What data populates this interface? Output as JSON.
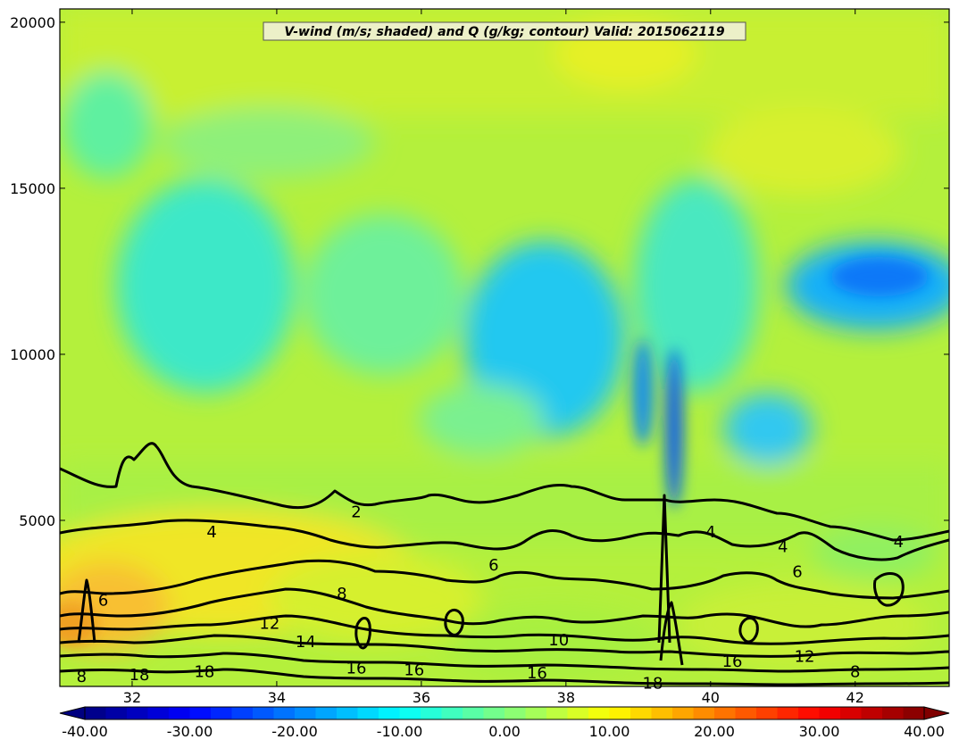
{
  "chart_data": {
    "type": "heatmap",
    "title": "V-wind (m/s; shaded) and Q (g/kg; contour) Valid: 2015062119",
    "x_ticks": [
      32,
      34,
      36,
      38,
      40,
      42
    ],
    "xlim": [
      31.0,
      43.3
    ],
    "y_ticks": [
      5000,
      10000,
      15000,
      20000
    ],
    "ylim": [
      0,
      20400
    ],
    "shaded_variable": "V-wind (m/s)",
    "contour_variable": "Q (g/kg)",
    "colorbar": {
      "ticks": [
        "-40.00",
        "-30.00",
        "-20.00",
        "-10.00",
        "0.00",
        "10.00",
        "20.00",
        "30.00",
        "40.00"
      ],
      "range": [
        -40,
        40
      ],
      "extend": "both",
      "colormap": "jet"
    },
    "contour_labels": [
      {
        "text": "2",
        "x": 35.1,
        "y": 5250
      },
      {
        "text": "4",
        "x": 33.1,
        "y": 4650
      },
      {
        "text": "4",
        "x": 40.0,
        "y": 4650
      },
      {
        "text": "4",
        "x": 41.0,
        "y": 4200
      },
      {
        "text": "4",
        "x": 42.6,
        "y": 4350
      },
      {
        "text": "6",
        "x": 31.6,
        "y": 2600
      },
      {
        "text": "6",
        "x": 37.0,
        "y": 3650
      },
      {
        "text": "6",
        "x": 41.2,
        "y": 3450
      },
      {
        "text": "8",
        "x": 34.9,
        "y": 2800
      },
      {
        "text": "10",
        "x": 37.9,
        "y": 1400
      },
      {
        "text": "12",
        "x": 33.9,
        "y": 1900
      },
      {
        "text": "12",
        "x": 41.3,
        "y": 900
      },
      {
        "text": "14",
        "x": 34.4,
        "y": 1350
      },
      {
        "text": "16",
        "x": 35.1,
        "y": 550
      },
      {
        "text": "16",
        "x": 35.9,
        "y": 500
      },
      {
        "text": "16",
        "x": 37.6,
        "y": 400
      },
      {
        "text": "16",
        "x": 40.3,
        "y": 750
      },
      {
        "text": "18",
        "x": 32.1,
        "y": 350
      },
      {
        "text": "18",
        "x": 33.0,
        "y": 450
      },
      {
        "text": "18",
        "x": 39.2,
        "y": 100
      },
      {
        "text": "8",
        "x": 31.3,
        "y": 300
      },
      {
        "text": "8",
        "x": 42.0,
        "y": 450
      }
    ]
  }
}
